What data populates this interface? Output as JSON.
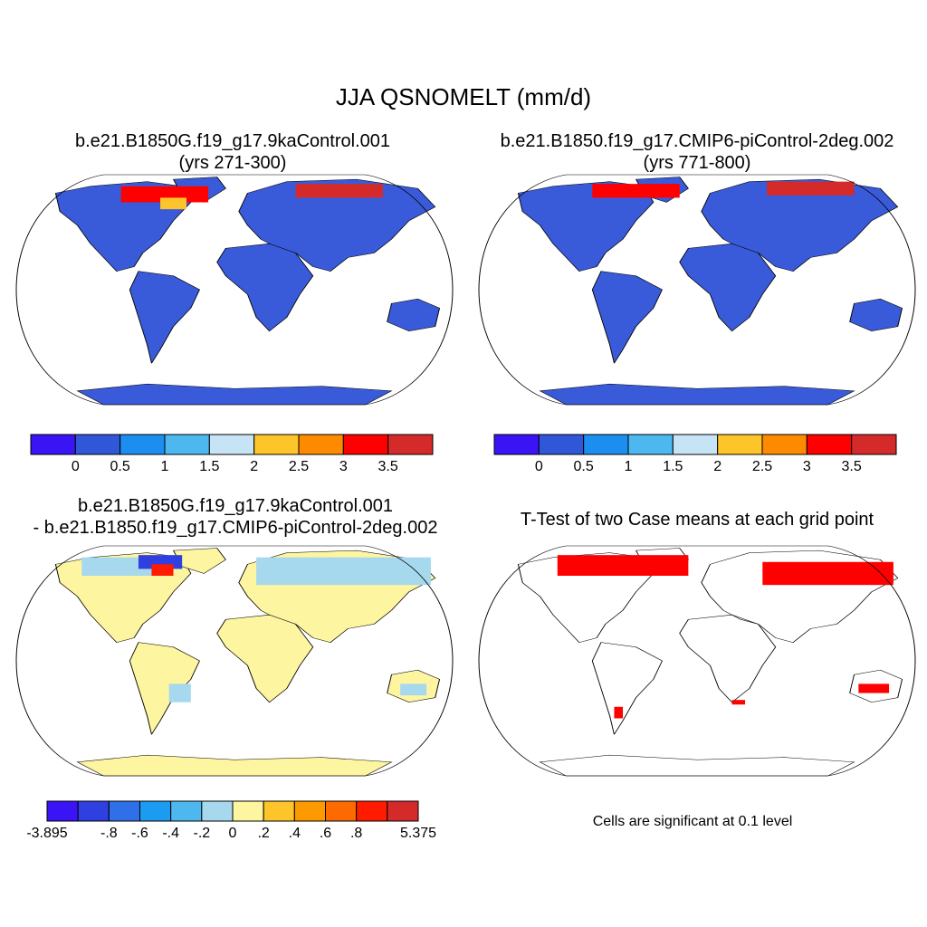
{
  "figure": {
    "title": "JJA QSNOMELT (mm/d)"
  },
  "panels": [
    {
      "id": "case1",
      "title_line1": "b.e21.B1850G.f19_g17.9kaControl.001",
      "title_line2": "(yrs 271-300)",
      "projection": "Robinson",
      "fill": "#3a5bd9"
    },
    {
      "id": "case2",
      "title_line1": "b.e21.B1850.f19_g17.CMIP6-piControl-2deg.002",
      "title_line2": "(yrs 771-800)",
      "projection": "Robinson",
      "fill": "#3a5bd9"
    },
    {
      "id": "difference",
      "title_line1": "b.e21.B1850G.f19_g17.9kaControl.001",
      "title_line2": "- b.e21.B1850.f19_g17.CMIP6-piControl-2deg.002",
      "projection": "Robinson",
      "fill": "#fdf5a0"
    },
    {
      "id": "ttest",
      "title_line1": "T-Test of two Case means at each grid point",
      "projection": "Robinson",
      "significant_color": "#ff0000"
    }
  ],
  "colorbar_abs": {
    "colors": [
      "#3b14f5",
      "#3057d8",
      "#1c8ef0",
      "#4cb8ef",
      "#c6e4f5",
      "#fdc52a",
      "#fd8a00",
      "#ff0000",
      "#d42a2a"
    ],
    "labels": [
      "0",
      "0.5",
      "1",
      "1.5",
      "2",
      "2.5",
      "3",
      "3.5"
    ]
  },
  "colorbar_diff": {
    "colors": [
      "#3b14f5",
      "#2f3fe0",
      "#2f6fe8",
      "#1c9cf0",
      "#4cb8ef",
      "#a6d8ee",
      "#fdf5a0",
      "#fdc52a",
      "#fd9a00",
      "#fd6a00",
      "#ff1a00",
      "#d42a2a"
    ],
    "labels": [
      "-3.895",
      "-.8",
      "-.6",
      "-.4",
      "-.2",
      "0",
      ".2",
      ".4",
      ".6",
      ".8",
      "5.375"
    ]
  },
  "significance_note": "Cells are significant at 0.1 level"
}
